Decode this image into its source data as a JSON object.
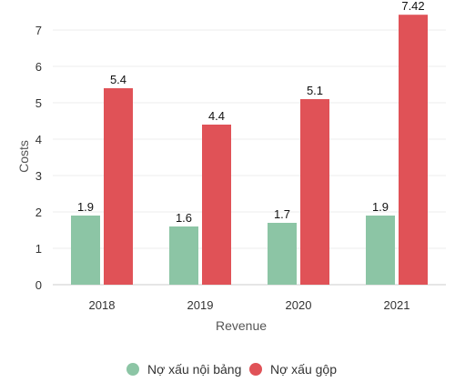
{
  "chart_data": {
    "type": "bar",
    "categories": [
      "2018",
      "2019",
      "2020",
      "2021"
    ],
    "series": [
      {
        "name": "Nợ xấu nội bảng",
        "values": [
          1.9,
          1.6,
          1.7,
          1.9
        ],
        "labels": [
          "1.9",
          "1.6",
          "1.7",
          "1.9"
        ],
        "color": "#8cc5a5"
      },
      {
        "name": "Nợ xấu gộp",
        "values": [
          5.4,
          4.4,
          5.1,
          7.42
        ],
        "labels": [
          "5.4",
          "4.4",
          "5.1",
          "7.42"
        ],
        "color": "#e05257"
      }
    ],
    "xlabel": "Revenue",
    "ylabel": "Costs",
    "ylim": [
      0,
      7.5
    ],
    "yticks": [
      0,
      1,
      2,
      3,
      4,
      5,
      6,
      7
    ],
    "grid": true,
    "legend_position": "bottom"
  }
}
